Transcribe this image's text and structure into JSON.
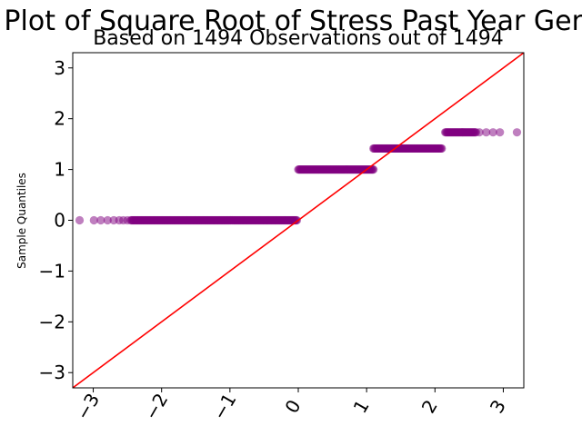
{
  "chart_data": {
    "type": "scatter",
    "title": "Q-Q Plot of Square Root of Stress Past Year General",
    "subtitle": "Based on 1494 Observations out of 1494",
    "xlabel": "",
    "ylabel": "Sample Quantiles",
    "xlim": [
      -3.3,
      3.3
    ],
    "ylim": [
      -3.3,
      3.3
    ],
    "xticks": [
      -3,
      -2,
      -1,
      0,
      1,
      2,
      3
    ],
    "yticks": [
      -3,
      -2,
      -1,
      0,
      1,
      2,
      3
    ],
    "xtick_labels": [
      "−3",
      "−2",
      "−1",
      "0",
      "1",
      "2",
      "3"
    ],
    "ytick_labels": [
      "−3",
      "−2",
      "−1",
      "0",
      "1",
      "2",
      "3"
    ],
    "grid": false,
    "point_color": "#800080",
    "line_color": "#ff0000",
    "reference_line": {
      "slope": 1,
      "intercept": 0
    },
    "groups": [
      {
        "y": 0,
        "x_from": -3.2,
        "x_to": -0.02,
        "sparse_x": [
          -3.2,
          -2.99,
          -2.89,
          -2.79,
          -2.7,
          -2.62,
          -2.56,
          -2.5
        ]
      },
      {
        "y": 1,
        "x_from": 0.0,
        "x_to": 1.1,
        "sparse_x": []
      },
      {
        "y": 1.414,
        "x_from": 1.1,
        "x_to": 2.1,
        "sparse_x": []
      },
      {
        "y": 1.732,
        "x_from": 2.15,
        "x_to": 3.2,
        "sparse_x": [
          2.65,
          2.75,
          2.85,
          2.95,
          3.2
        ]
      }
    ]
  }
}
